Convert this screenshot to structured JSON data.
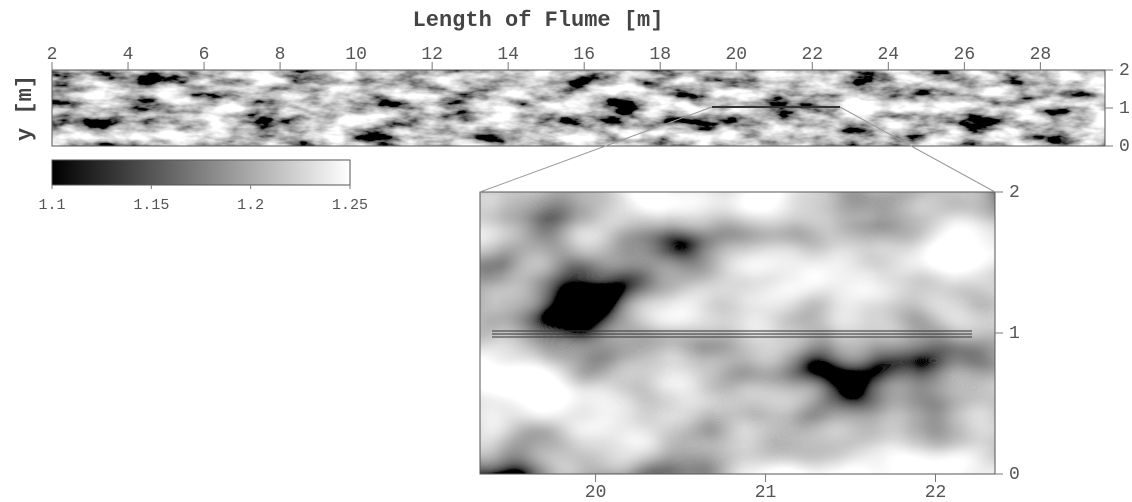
{
  "chart_data": [
    {
      "type": "heatmap",
      "title": "Length of Flume [m]",
      "y_label": "y [m]",
      "xlim": [
        2,
        29.7
      ],
      "xticks": [
        2,
        4,
        6,
        8,
        10,
        12,
        14,
        16,
        18,
        20,
        22,
        24,
        26,
        28
      ],
      "ylim": [
        0,
        2
      ],
      "yticks": [
        0,
        1,
        2
      ]
    },
    {
      "type": "colorbar",
      "clim": [
        1.1,
        1.25
      ],
      "ticks": [
        1.1,
        1.15,
        1.2,
        1.25
      ],
      "colors": [
        "#000000",
        "#ffffff"
      ]
    },
    {
      "type": "heatmap",
      "xlim": [
        19.32,
        22.35
      ],
      "xticks": [
        20,
        21,
        22
      ],
      "ylim": [
        0,
        2
      ],
      "yticks": [
        0,
        1,
        2
      ]
    }
  ]
}
